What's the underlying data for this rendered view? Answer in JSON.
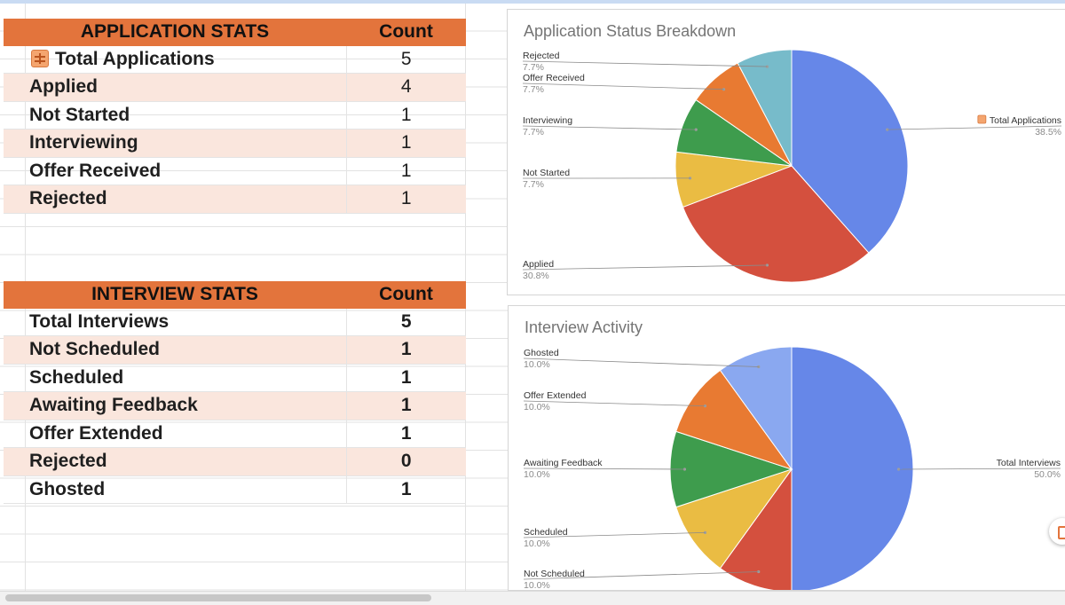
{
  "colors": {
    "header_bg": "#e3743c",
    "row_alt_bg": "#fae6dd",
    "pie_blue": "#6687e8",
    "pie_red": "#d4503e",
    "pie_yellow": "#eabc43",
    "pie_green": "#3e9c4d",
    "pie_orange": "#e87a32",
    "pie_teal": "#77bbca",
    "pie_light_blue": "#8aa8f0"
  },
  "application_stats": {
    "header_label": "APPLICATION STATS",
    "header_count": "Count",
    "icon": "table-icon",
    "rows": [
      {
        "label": "Total Applications",
        "count": "5"
      },
      {
        "label": "Applied",
        "count": "4"
      },
      {
        "label": "Not Started",
        "count": "1"
      },
      {
        "label": "Interviewing",
        "count": "1"
      },
      {
        "label": "Offer Received",
        "count": "1"
      },
      {
        "label": "Rejected",
        "count": "1"
      }
    ]
  },
  "interview_stats": {
    "header_label": "INTERVIEW STATS",
    "header_count": "Count",
    "rows": [
      {
        "label": "Total Interviews",
        "count": "5"
      },
      {
        "label": "Not Scheduled",
        "count": "1"
      },
      {
        "label": "Scheduled",
        "count": "1"
      },
      {
        "label": "Awaiting Feedback",
        "count": "1"
      },
      {
        "label": "Offer Extended",
        "count": "1"
      },
      {
        "label": "Rejected",
        "count": "0"
      },
      {
        "label": "Ghosted",
        "count": "1"
      }
    ]
  },
  "chart_data": [
    {
      "type": "pie",
      "title": "Application Status Breakdown",
      "slices": [
        {
          "label": "Total Applications",
          "value": 5,
          "pct": "38.5%",
          "color": "#6687e8"
        },
        {
          "label": "Applied",
          "value": 4,
          "pct": "30.8%",
          "color": "#d4503e"
        },
        {
          "label": "Not Started",
          "value": 1,
          "pct": "7.7%",
          "color": "#eabc43"
        },
        {
          "label": "Interviewing",
          "value": 1,
          "pct": "7.7%",
          "color": "#3e9c4d"
        },
        {
          "label": "Offer Received",
          "value": 1,
          "pct": "7.7%",
          "color": "#e87a32"
        },
        {
          "label": "Rejected",
          "value": 1,
          "pct": "7.7%",
          "color": "#77bbca"
        }
      ]
    },
    {
      "type": "pie",
      "title": "Interview Activity",
      "slices": [
        {
          "label": "Total Interviews",
          "value": 5,
          "pct": "50.0%",
          "color": "#6687e8"
        },
        {
          "label": "Not Scheduled",
          "value": 1,
          "pct": "10.0%",
          "color": "#d4503e"
        },
        {
          "label": "Scheduled",
          "value": 1,
          "pct": "10.0%",
          "color": "#eabc43"
        },
        {
          "label": "Awaiting Feedback",
          "value": 1,
          "pct": "10.0%",
          "color": "#3e9c4d"
        },
        {
          "label": "Offer Extended",
          "value": 1,
          "pct": "10.0%",
          "color": "#e87a32"
        },
        {
          "label": "Ghosted",
          "value": 1,
          "pct": "10.0%",
          "color": "#8aa8f0"
        }
      ]
    }
  ]
}
